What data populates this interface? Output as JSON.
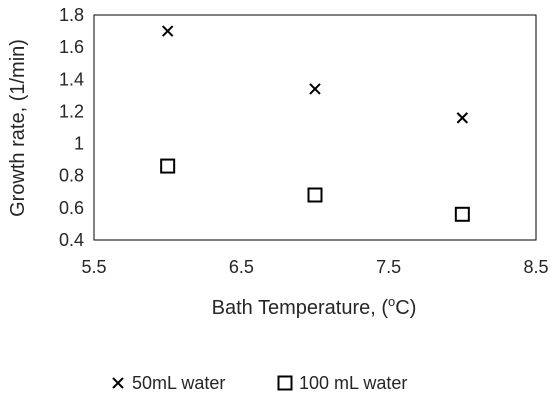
{
  "chart_data": {
    "type": "scatter",
    "xlabel_main": "Bath Temperature, (",
    "xlabel_sup": "o",
    "xlabel_end": "C)",
    "ylabel": "Growth rate, (1/min)",
    "xlim": [
      5.5,
      8.5
    ],
    "ylim": [
      0.4,
      1.8
    ],
    "x_ticks": [
      "5.5",
      "6.5",
      "7.5",
      "8.5"
    ],
    "y_ticks": [
      "0.4",
      "0.6",
      "0.8",
      "1",
      "1.2",
      "1.4",
      "1.6",
      "1.8"
    ],
    "grid": false,
    "legend_position": "bottom",
    "series": [
      {
        "name": "50mL water",
        "marker": "x",
        "color": "#000000",
        "points": [
          {
            "x": 6,
            "y": 1.7
          },
          {
            "x": 7,
            "y": 1.34
          },
          {
            "x": 8,
            "y": 1.16
          }
        ]
      },
      {
        "name": "100 mL water",
        "marker": "square",
        "color": "#000000",
        "points": [
          {
            "x": 6,
            "y": 0.86
          },
          {
            "x": 7,
            "y": 0.68
          },
          {
            "x": 8,
            "y": 0.56
          }
        ]
      }
    ]
  }
}
